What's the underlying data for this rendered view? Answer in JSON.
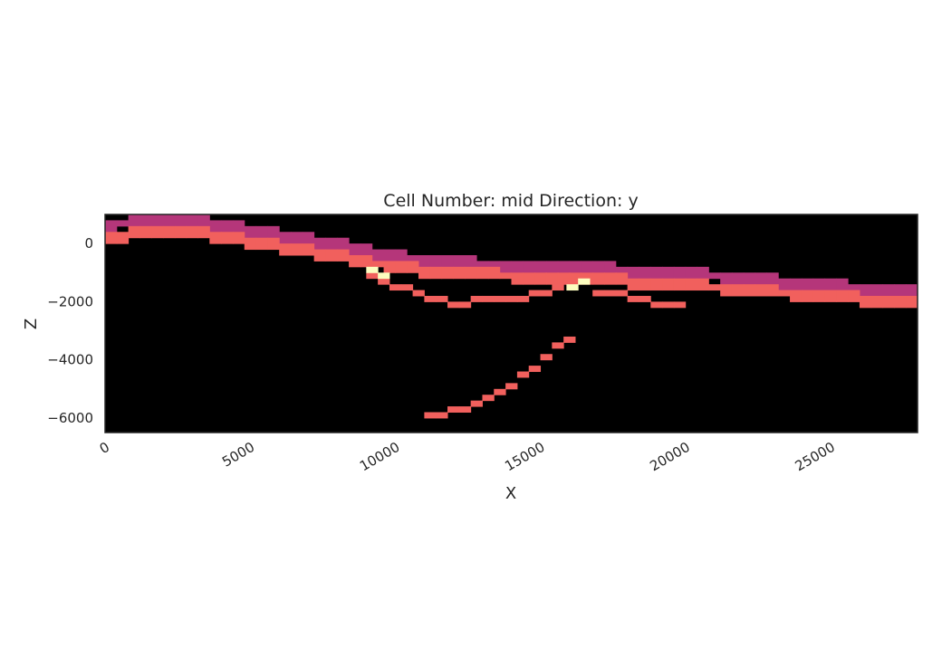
{
  "chart_data": {
    "type": "heatmap",
    "title": "Cell Number: mid Direction: y",
    "xlabel": "X",
    "ylabel": "Z",
    "xlim": [
      0,
      28000
    ],
    "ylim": [
      -6500,
      1000
    ],
    "x_ticks": [
      "0",
      "5000",
      "10000",
      "15000",
      "20000",
      "25000"
    ],
    "y_ticks": [
      "0",
      "−2000",
      "−4000",
      "−6000"
    ],
    "grid": false,
    "background_color": "#000000",
    "colors": {
      "upper_unit": "#b5367a",
      "middle_unit": "#f1605d",
      "lower_unit": "#fcfdbf"
    },
    "layers": [
      {
        "color": "upper_unit",
        "points": [
          [
            0,
            620
          ],
          [
            1000,
            750
          ],
          [
            2000,
            870
          ],
          [
            3000,
            820
          ],
          [
            4000,
            650
          ],
          [
            5000,
            430
          ],
          [
            6000,
            280
          ],
          [
            7000,
            110
          ],
          [
            8000,
            -50
          ],
          [
            9000,
            -230
          ],
          [
            10000,
            -440
          ],
          [
            11000,
            -560
          ],
          [
            12000,
            -640
          ],
          [
            13000,
            -700
          ],
          [
            14000,
            -750
          ],
          [
            15000,
            -800
          ],
          [
            16000,
            -830
          ],
          [
            17000,
            -870
          ],
          [
            18000,
            -900
          ],
          [
            19000,
            -970
          ],
          [
            20000,
            -1030
          ],
          [
            21000,
            -1110
          ],
          [
            22000,
            -1200
          ],
          [
            23000,
            -1290
          ],
          [
            24000,
            -1380
          ],
          [
            25000,
            -1450
          ],
          [
            26000,
            -1510
          ],
          [
            27000,
            -1580
          ],
          [
            28000,
            -1660
          ]
        ],
        "thickness": 380
      },
      {
        "color": "middle_unit",
        "points": [
          [
            0,
            200
          ],
          [
            1000,
            330
          ],
          [
            2000,
            440
          ],
          [
            3000,
            410
          ],
          [
            4000,
            250
          ],
          [
            5000,
            50
          ],
          [
            6000,
            -110
          ],
          [
            7000,
            -260
          ],
          [
            8000,
            -420
          ],
          [
            9000,
            -610
          ],
          [
            10000,
            -820
          ],
          [
            11000,
            -930
          ],
          [
            12000,
            -1000
          ],
          [
            13000,
            -1060
          ],
          [
            14000,
            -1120
          ],
          [
            15000,
            -1170
          ],
          [
            16000,
            -1210
          ],
          [
            17000,
            -1250
          ],
          [
            18000,
            -1300
          ],
          [
            19000,
            -1370
          ],
          [
            20000,
            -1440
          ],
          [
            21000,
            -1500
          ],
          [
            22000,
            -1580
          ],
          [
            23000,
            -1660
          ],
          [
            24000,
            -1760
          ],
          [
            25000,
            -1830
          ],
          [
            26000,
            -1900
          ],
          [
            27000,
            -1960
          ],
          [
            28000,
            -2050
          ]
        ],
        "thickness": 380
      },
      {
        "color": "middle_unit",
        "points": [
          [
            9000,
            -1000
          ],
          [
            9700,
            -1350
          ],
          [
            10500,
            -1650
          ],
          [
            11200,
            -1950
          ],
          [
            12000,
            -2050
          ],
          [
            13000,
            -2000
          ],
          [
            14000,
            -1900
          ],
          [
            15000,
            -1750
          ],
          [
            15800,
            -1480
          ],
          [
            16200,
            -1350
          ]
        ],
        "thickness": 170
      },
      {
        "color": "middle_unit",
        "points": [
          [
            16800,
            -1650
          ],
          [
            17500,
            -1700
          ],
          [
            18300,
            -1850
          ],
          [
            19000,
            -2050
          ],
          [
            19800,
            -2200
          ]
        ],
        "thickness": 150
      },
      {
        "color": "middle_unit",
        "points": [
          [
            11000,
            -6000
          ],
          [
            12000,
            -5800
          ],
          [
            13000,
            -5450
          ],
          [
            14000,
            -4850
          ],
          [
            15000,
            -4100
          ],
          [
            16000,
            -3250
          ]
        ],
        "thickness": 160
      },
      {
        "color": "lower_unit",
        "points": [
          [
            9000,
            -950
          ],
          [
            9600,
            -1050
          ]
        ],
        "thickness": 110
      },
      {
        "color": "lower_unit",
        "points": [
          [
            15900,
            -1500
          ],
          [
            16500,
            -1340
          ]
        ],
        "thickness": 130
      }
    ]
  }
}
